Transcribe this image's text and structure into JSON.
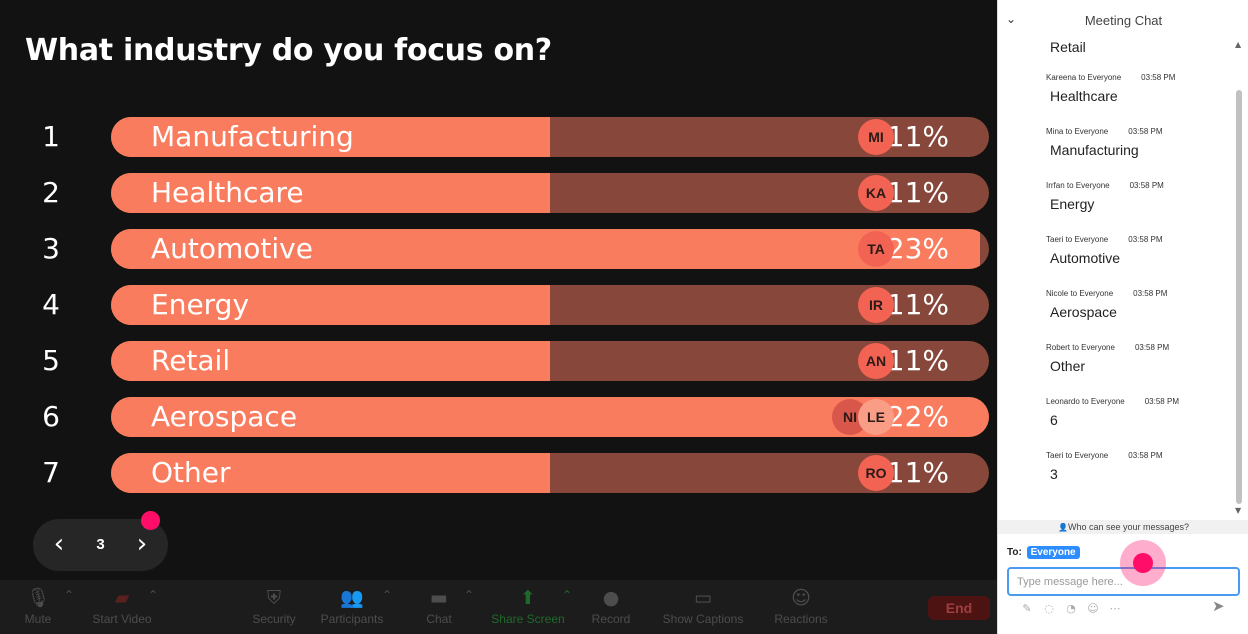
{
  "poll": {
    "question": "What industry do you focus on?",
    "options": [
      {
        "num": "1",
        "label": "Manufacturing",
        "percent_text": "11%",
        "fill": 0.5,
        "avatars": [
          "MI"
        ]
      },
      {
        "num": "2",
        "label": "Healthcare",
        "percent_text": "11%",
        "fill": 0.5,
        "avatars": [
          "KA"
        ]
      },
      {
        "num": "3",
        "label": "Automotive",
        "percent_text": "23%",
        "fill": 0.99,
        "avatars": [
          "TA"
        ]
      },
      {
        "num": "4",
        "label": "Energy",
        "percent_text": "11%",
        "fill": 0.5,
        "avatars": [
          "IR"
        ]
      },
      {
        "num": "5",
        "label": "Retail",
        "percent_text": "11%",
        "fill": 0.5,
        "avatars": [
          "AN"
        ]
      },
      {
        "num": "6",
        "label": "Aerospace",
        "percent_text": "22%",
        "fill": 1.0,
        "avatars": [
          "NI",
          "LE"
        ]
      },
      {
        "num": "7",
        "label": "Other",
        "percent_text": "11%",
        "fill": 0.5,
        "avatars": [
          "RO"
        ]
      }
    ]
  },
  "slide_nav": {
    "current": "3",
    "prev_icon": "chevron-left-icon",
    "next_icon": "chevron-right-icon"
  },
  "toolbar": {
    "mute": "Mute",
    "start_video": "Start Video",
    "security": "Security",
    "participants": "Participants",
    "chat": "Chat",
    "share_screen": "Share Screen",
    "record": "Record",
    "show_captions": "Show Captions",
    "reactions": "Reactions",
    "end": "End"
  },
  "chat": {
    "title": "Meeting Chat",
    "messages": [
      {
        "sender": "",
        "time": "",
        "text": "Retail"
      },
      {
        "sender": "Kareena to Everyone",
        "time": "03:58 PM",
        "text": "Healthcare"
      },
      {
        "sender": "Mina to Everyone",
        "time": "03:58 PM",
        "text": "Manufacturing"
      },
      {
        "sender": "Irrfan to Everyone",
        "time": "03:58 PM",
        "text": "Energy"
      },
      {
        "sender": "Taeri to Everyone",
        "time": "03:58 PM",
        "text": "Automotive"
      },
      {
        "sender": "Nicole to Everyone",
        "time": "03:58 PM",
        "text": "Aerospace"
      },
      {
        "sender": "Robert to Everyone",
        "time": "03:58 PM",
        "text": "Other"
      },
      {
        "sender": "Leonardo to Everyone",
        "time": "03:58 PM",
        "text": "6"
      },
      {
        "sender": "Taeri to Everyone",
        "time": "03:58 PM",
        "text": "3"
      }
    ],
    "who_can_see": "Who can see your messages?",
    "to_label": "To:",
    "to_value": "Everyone",
    "input_value": "",
    "input_placeholder": "Type message here..."
  },
  "colors": {
    "bar_fill": "#f97c5e",
    "bar_track": "#87473a",
    "accent_pink": "#ff0d68",
    "chip_blue": "#2d8cff"
  }
}
